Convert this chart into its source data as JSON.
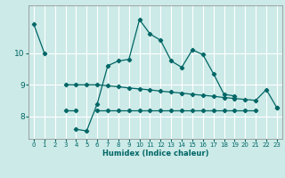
{
  "xlabel": "Humidex (Indice chaleur)",
  "background_color": "#cceae7",
  "grid_color": "#ffffff",
  "line_color": "#006666",
  "x_values": [
    0,
    1,
    2,
    3,
    4,
    5,
    6,
    7,
    8,
    9,
    10,
    11,
    12,
    13,
    14,
    15,
    16,
    17,
    18,
    19,
    20,
    21,
    22,
    23
  ],
  "top_y": [
    10.9,
    10.0,
    null,
    null,
    null,
    null,
    null,
    null,
    null,
    null,
    null,
    null,
    null,
    null,
    null,
    null,
    null,
    null,
    null,
    null,
    null,
    null,
    null,
    null
  ],
  "curve_y": [
    null,
    null,
    null,
    null,
    7.6,
    7.55,
    8.4,
    9.6,
    9.75,
    9.8,
    11.05,
    10.6,
    10.4,
    9.75,
    9.55,
    10.1,
    9.95,
    9.35,
    8.7,
    8.65,
    null,
    null,
    null,
    null
  ],
  "mid_y": [
    null,
    null,
    null,
    9.0,
    9.0,
    9.0,
    9.0,
    8.97,
    8.94,
    8.9,
    8.87,
    8.84,
    8.8,
    8.77,
    8.74,
    8.7,
    8.67,
    8.64,
    8.6,
    8.57,
    8.54,
    8.51,
    8.85,
    8.28
  ],
  "bot_y": [
    null,
    null,
    null,
    8.2,
    8.2,
    null,
    8.2,
    8.2,
    8.2,
    8.2,
    8.2,
    8.2,
    8.2,
    8.2,
    8.2,
    8.2,
    8.2,
    8.2,
    8.2,
    8.2,
    8.2,
    8.2,
    null,
    8.28
  ],
  "xlim": [
    -0.5,
    23.5
  ],
  "ylim": [
    7.3,
    11.5
  ],
  "yticks": [
    8,
    9,
    10
  ],
  "xticks": [
    0,
    1,
    2,
    3,
    4,
    5,
    6,
    7,
    8,
    9,
    10,
    11,
    12,
    13,
    14,
    15,
    16,
    17,
    18,
    19,
    20,
    21,
    22,
    23
  ]
}
